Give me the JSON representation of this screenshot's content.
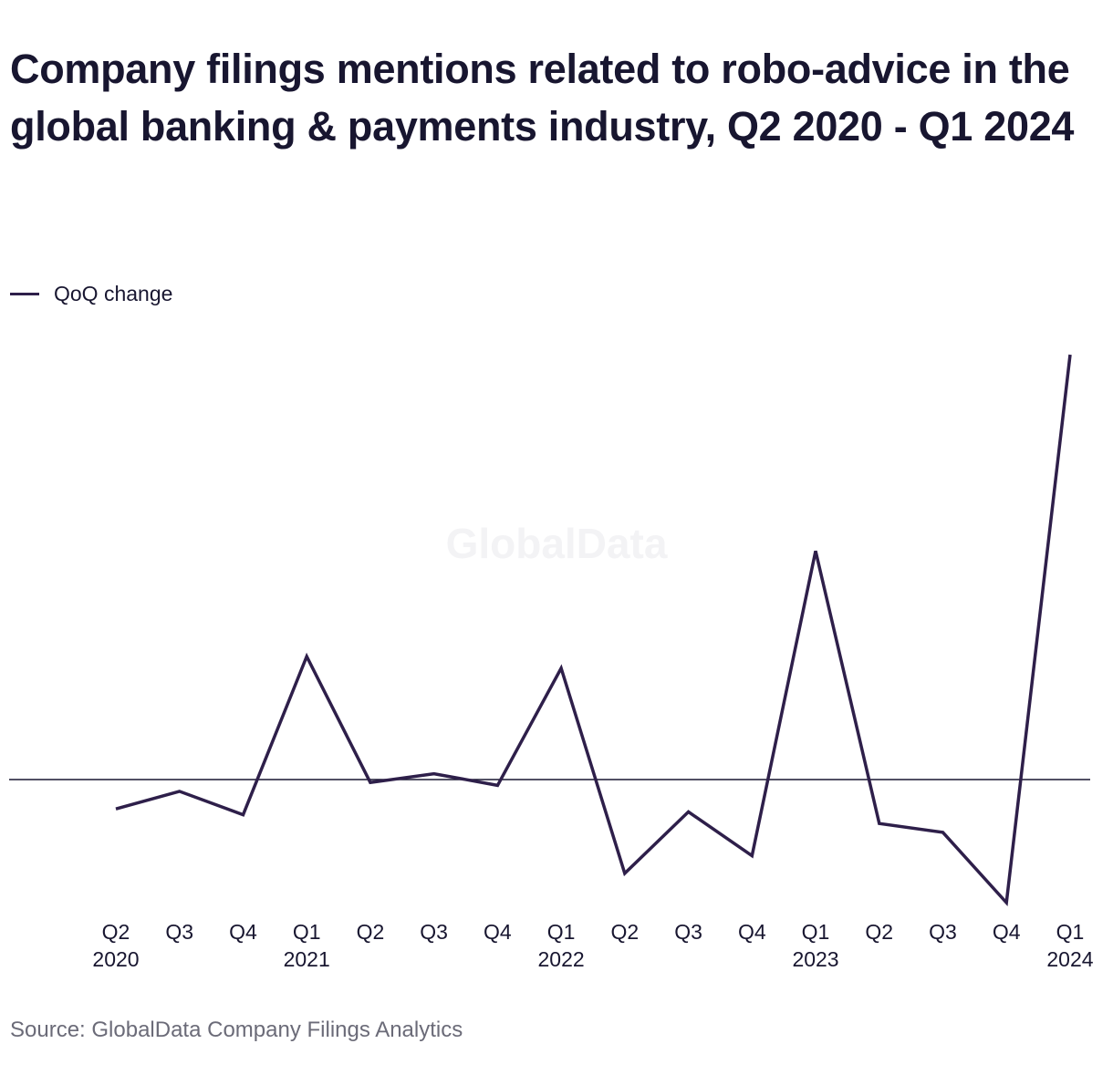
{
  "title": "Company filings mentions related to robo-advice in the global banking & payments industry, Q2 2020 - Q1 2024",
  "source": "Source: GlobalData Company Filings Analytics",
  "watermark": "GlobalData",
  "colors": {
    "series": "#2e1f4a",
    "zero_line": "#181630",
    "text": "#181630",
    "source": "#6b6b78",
    "watermark": "#f3f3f5"
  },
  "chart_data": {
    "type": "line",
    "title": "Company filings mentions related to robo-advice in the global banking & payments industry, Q2 2020 - Q1 2024",
    "xlabel": "",
    "ylabel": "",
    "categories": [
      "Q2 2020",
      "Q3",
      "Q4",
      "Q1 2021",
      "Q2",
      "Q3",
      "Q4",
      "Q1 2022",
      "Q2",
      "Q3",
      "Q4",
      "Q1 2023",
      "Q2",
      "Q3",
      "Q4",
      "Q1 2024"
    ],
    "tick_labels": [
      [
        "Q2",
        "2020"
      ],
      [
        "Q3"
      ],
      [
        "Q4"
      ],
      [
        "Q1",
        "2021"
      ],
      [
        "Q2"
      ],
      [
        "Q3"
      ],
      [
        "Q4"
      ],
      [
        "Q1",
        "2022"
      ],
      [
        "Q2"
      ],
      [
        "Q3"
      ],
      [
        "Q4"
      ],
      [
        "Q1",
        "2023"
      ],
      [
        "Q2"
      ],
      [
        "Q3"
      ],
      [
        "Q4"
      ],
      [
        "Q1",
        "2024"
      ]
    ],
    "series": [
      {
        "name": "QoQ change",
        "values": [
          -10,
          -4,
          -12,
          42,
          -1,
          2,
          -2,
          38,
          -32,
          -11,
          -26,
          78,
          -15,
          -18,
          -42,
          145
        ]
      }
    ],
    "ylim": [
      -42,
      145
    ],
    "y_axis_shown": false,
    "zero_line": true,
    "grid": false,
    "legend_position": "top-left"
  }
}
